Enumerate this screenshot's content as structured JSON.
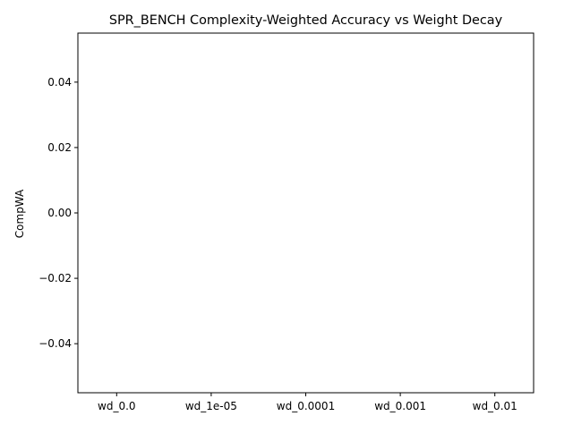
{
  "chart_data": {
    "type": "bar",
    "title": "SPR_BENCH Complexity-Weighted Accuracy vs Weight Decay",
    "xlabel": "",
    "ylabel": "CompWA",
    "categories": [
      "wd_0.0",
      "wd_1e-05",
      "wd_0.0001",
      "wd_0.001",
      "wd_0.01"
    ],
    "values": [
      0,
      0,
      0,
      0,
      0
    ],
    "ylim": [
      -0.055,
      0.055
    ],
    "yticks": [
      0.04,
      0.02,
      0.0,
      -0.02,
      -0.04
    ],
    "ytick_labels": [
      "0.04",
      "0.02",
      "0.00",
      "−0.02",
      "−0.04"
    ],
    "grid": false,
    "legend": "none"
  }
}
